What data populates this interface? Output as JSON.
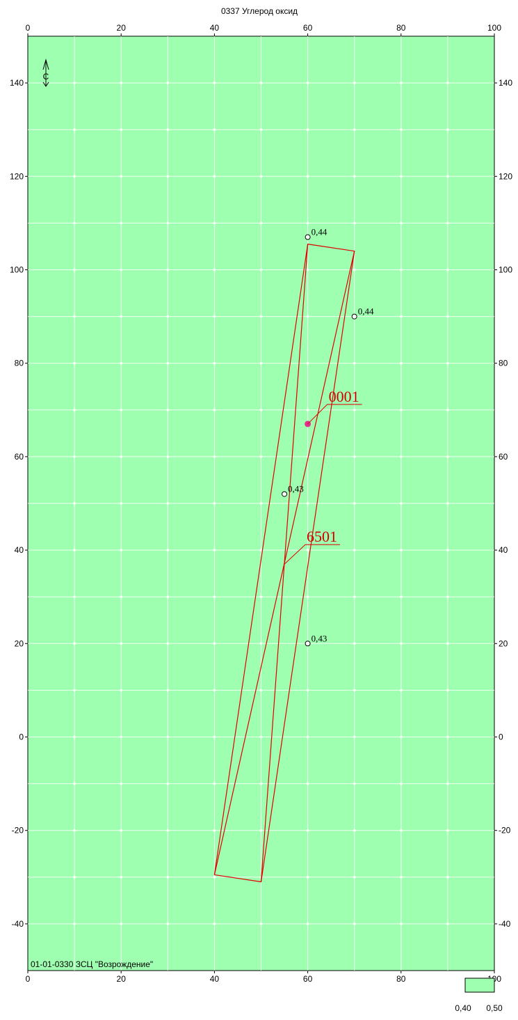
{
  "title": "0337 Углерод оксид",
  "footer_caption": "01-01-0330 ЗСЦ \"Возрождение\"",
  "north_marker": "С",
  "colors": {
    "background": "#9effb0",
    "grid": "#ffffff",
    "grid_dot": "#ffffff",
    "boundary": "#e00000",
    "source_label": "#d00000",
    "source_point": "#e0308a"
  },
  "axes": {
    "x_ticks": [
      "0",
      "20",
      "40",
      "60",
      "80",
      "100"
    ],
    "y_ticks": [
      "140",
      "120",
      "100",
      "80",
      "60",
      "40",
      "20",
      "0",
      "-20",
      "-40"
    ]
  },
  "chart_data": {
    "type": "map",
    "xlim": [
      0,
      100
    ],
    "ylim": [
      -50,
      150
    ],
    "x_tick_values": [
      0,
      20,
      40,
      60,
      80,
      100
    ],
    "y_tick_values": [
      140,
      120,
      100,
      80,
      60,
      40,
      20,
      0,
      -20,
      -40
    ],
    "grid_step": 10,
    "boundary_polygon": [
      [
        40,
        -29.5
      ],
      [
        50,
        -31
      ],
      [
        60,
        105.5
      ],
      [
        70,
        104
      ],
      [
        40,
        -29.5
      ],
      [
        60,
        105.5
      ]
    ],
    "boundary_diagonals": [
      [
        [
          40,
          -29.5
        ],
        [
          70,
          104
        ]
      ],
      [
        [
          50,
          -31
        ],
        [
          60,
          105.5
        ]
      ]
    ],
    "calc_points": [
      {
        "x": 60,
        "y": 107,
        "label": "0,44"
      },
      {
        "x": 70,
        "y": 90,
        "label": "0,44"
      },
      {
        "x": 55,
        "y": 52,
        "label": "0,43"
      },
      {
        "x": 60,
        "y": 20,
        "label": "0,43"
      }
    ],
    "sources": [
      {
        "id": "0001",
        "x": 60,
        "y": 67
      },
      {
        "id": "6501",
        "x": 55,
        "y": 37
      }
    ]
  },
  "legend": {
    "labels": [
      "0,40",
      "0,50"
    ]
  }
}
